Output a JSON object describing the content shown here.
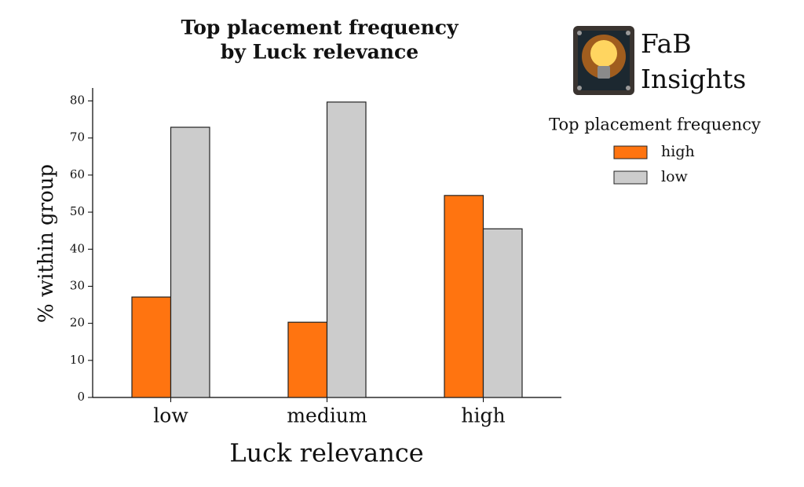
{
  "chart_data": {
    "type": "bar",
    "title": [
      "Top placement frequency",
      "by Luck relevance"
    ],
    "x_label": "Luck relevance",
    "y_label": "% within group",
    "categories": [
      "low",
      "medium",
      "high"
    ],
    "series": [
      {
        "name": "high",
        "color": "#ff7410",
        "values": [
          27.1,
          20.3,
          54.5
        ]
      },
      {
        "name": "low",
        "color": "#cccccc",
        "values": [
          72.9,
          79.7,
          45.5
        ]
      }
    ],
    "legend_title": "Top placement frequency",
    "ylim": [
      0,
      83.5
    ],
    "yticks": [
      0,
      10,
      20,
      30,
      40,
      50,
      60,
      70,
      80
    ],
    "grid": false
  },
  "logo": {
    "text": [
      "FaB",
      "Insights"
    ]
  }
}
